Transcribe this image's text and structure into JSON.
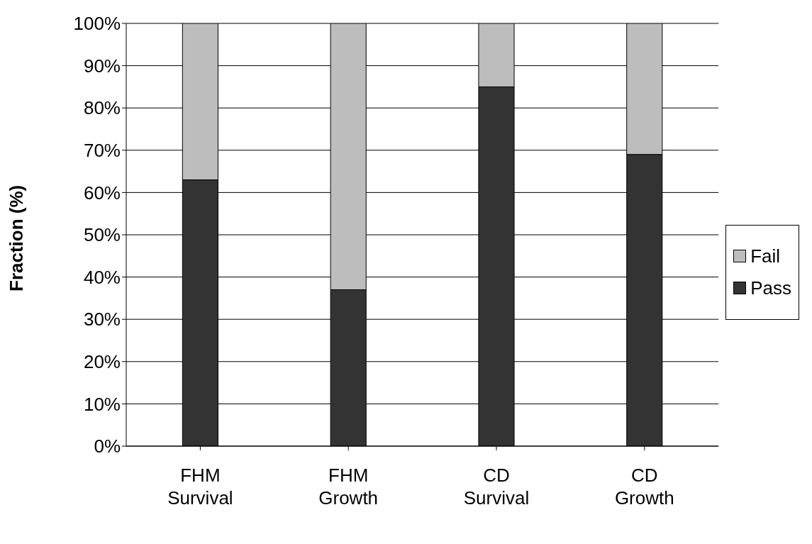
{
  "chart_data": {
    "type": "bar",
    "stacked": true,
    "ylabel": "Fraction (%)",
    "categories": [
      "FHM Survival",
      "FHM Growth",
      "CD Survival",
      "CD Growth"
    ],
    "series": [
      {
        "name": "Pass",
        "color": "#333333",
        "values": [
          63,
          37,
          85,
          69
        ]
      },
      {
        "name": "Fail",
        "color": "#bdbdbd",
        "values": [
          37,
          63,
          15,
          31
        ]
      }
    ],
    "ylim": [
      0,
      100
    ],
    "yticks": [
      {
        "value": 0,
        "label": "0%"
      },
      {
        "value": 10,
        "label": "10%"
      },
      {
        "value": 20,
        "label": "20%"
      },
      {
        "value": 30,
        "label": "30%"
      },
      {
        "value": 40,
        "label": "40%"
      },
      {
        "value": 50,
        "label": "50%"
      },
      {
        "value": 60,
        "label": "60%"
      },
      {
        "value": 70,
        "label": "70%"
      },
      {
        "value": 80,
        "label": "80%"
      },
      {
        "value": 90,
        "label": "90%"
      },
      {
        "value": 100,
        "label": "100%"
      }
    ],
    "grid": "y",
    "legend": "right"
  }
}
